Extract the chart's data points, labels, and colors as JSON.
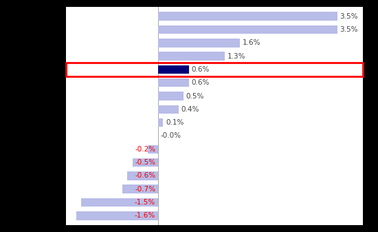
{
  "values": [
    3.5,
    3.5,
    1.6,
    1.3,
    0.6,
    0.6,
    0.5,
    0.4,
    0.1,
    0.0,
    -0.2,
    -0.5,
    -0.6,
    -0.7,
    -1.5,
    -1.6
  ],
  "labels": [
    "3.5%",
    "3.5%",
    "1.6%",
    "1.3%",
    "0.6%",
    "0.6%",
    "0.5%",
    "0.4%",
    "0.1%",
    "-0.0%",
    "-0.2%",
    "-0.5%",
    "-0.6%",
    "-0.7%",
    "-1.5%",
    "-1.6%"
  ],
  "highlight_index": 4,
  "bar_color_positive": "#b8bce8",
  "bar_color_highlight": "#00007a",
  "label_color_positive": "#444444",
  "label_color_negative": "#ee0000",
  "background_color": "#ffffff",
  "figure_bg": "#000000",
  "xlim": [
    -1.8,
    4.0
  ],
  "figsize": [
    5.5,
    3.37
  ],
  "dpi": 100,
  "bar_height": 0.65
}
